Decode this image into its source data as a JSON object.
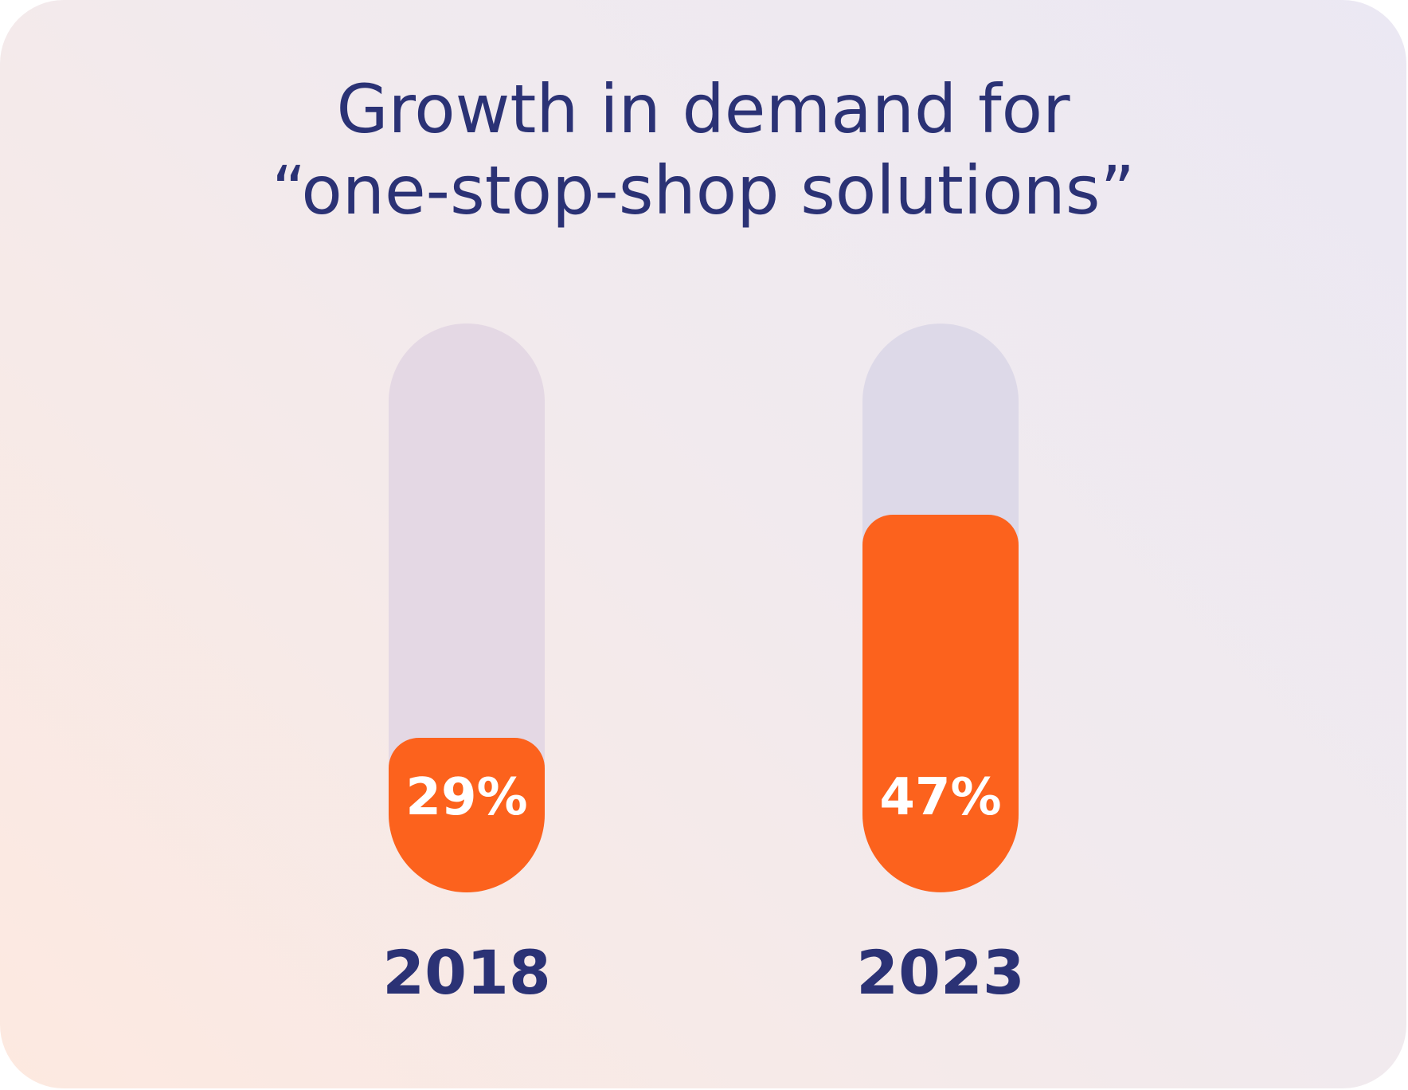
{
  "chart_data": {
    "type": "bar",
    "title_lines": [
      "Growth in demand for",
      "“one-stop-shop solutions”"
    ],
    "categories": [
      "2018",
      "2023"
    ],
    "values": [
      29,
      47
    ],
    "value_labels": [
      "29%",
      "47%"
    ],
    "unit": "%",
    "ylim": [
      0,
      100
    ],
    "grid": false,
    "colors": {
      "fill": "#fc621d",
      "track_2018": "#e4d8e4",
      "track_2023": "#ddd9e8",
      "text": "#2b3275",
      "label_on_bar": "#ffffff"
    }
  }
}
